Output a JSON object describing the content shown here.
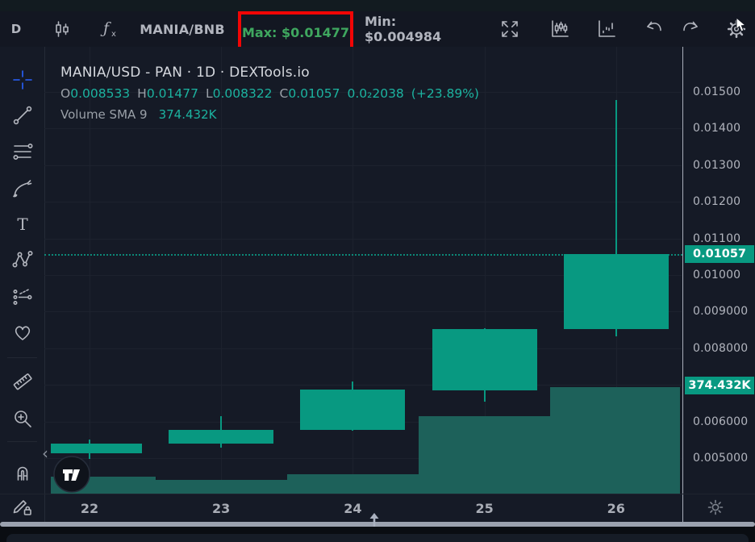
{
  "toolbar": {
    "timeframe_label": "D",
    "ticker": "MANIA/BNB",
    "max_label": "Max: $0.01477",
    "min_label": "Min: $0.004984",
    "icon_names": [
      "candlestick-interval-icon",
      "indicator-fx-icon",
      "expand-fullscreen-icon",
      "candles-style-icon",
      "bars-style-icon",
      "undo-icon",
      "redo-icon",
      "settings-gear-icon"
    ]
  },
  "legend": {
    "title": "MANIA/USD - PAN · 1D · DEXTools.io",
    "ohlc": {
      "o_label": "O",
      "o": "0.008533",
      "h_label": "H",
      "h": "0.01477",
      "l_label": "L",
      "l": "0.008322",
      "c_label": "C",
      "c": "0.01057",
      "change_abs": "0.0₂2038",
      "change_pct": "(+23.89%)"
    },
    "volume_label": "Volume SMA 9",
    "volume_value": "374.432K"
  },
  "sidebar": {
    "tools": [
      {
        "name": "crosshair-tool",
        "icon": "crosshair-icon",
        "active": true
      },
      {
        "name": "trend-line-tool",
        "icon": "trend-line-icon"
      },
      {
        "name": "fib-retracement-tool",
        "icon": "fib-lines-icon"
      },
      {
        "name": "brush-tool",
        "icon": "brush-icon"
      },
      {
        "name": "text-tool",
        "icon": "text-icon"
      },
      {
        "name": "xabcd-pattern-tool",
        "icon": "pattern-icon"
      },
      {
        "name": "projection-tool",
        "icon": "projection-icon"
      },
      {
        "name": "emoji-tool",
        "icon": "heart-icon"
      },
      {
        "name": "measure-tool",
        "icon": "ruler-icon"
      },
      {
        "name": "zoom-in-tool",
        "icon": "magnifier-plus-icon"
      },
      {
        "name": "magnet-tool",
        "icon": "magnet-icon"
      },
      {
        "name": "lock-drawings-tool",
        "icon": "pencil-lock-icon"
      }
    ],
    "collapse_arrow": "‹"
  },
  "price_axis": {
    "ticks": [
      {
        "label": "0.01500",
        "value": 0.015
      },
      {
        "label": "0.01400",
        "value": 0.014
      },
      {
        "label": "0.01300",
        "value": 0.013
      },
      {
        "label": "0.01200",
        "value": 0.012
      },
      {
        "label": "0.01100",
        "value": 0.011
      },
      {
        "label": "0.01000",
        "value": 0.01
      },
      {
        "label": "0.009000",
        "value": 0.009
      },
      {
        "label": "0.008000",
        "value": 0.008
      },
      {
        "label": "0.006000",
        "value": 0.006
      },
      {
        "label": "0.005000",
        "value": 0.005
      }
    ],
    "price_badge": {
      "label": "0.01057",
      "value": 0.01057
    },
    "volume_badge": {
      "label": "374.432K",
      "value": 374432
    }
  },
  "chart_data": {
    "type": "candlestick",
    "title": "MANIA/USD - PAN · 1D · DEXTools.io",
    "pair": "MANIA/USD",
    "exchange": "PAN",
    "interval": "1D",
    "source": "DEXTools.io",
    "ylim": [
      0.00403,
      0.01623
    ],
    "grid": true,
    "x_labels": [
      "22",
      "23",
      "24",
      "25",
      "26"
    ],
    "candles": [
      {
        "date": "22",
        "open": 0.00513,
        "high": 0.00551,
        "low": 0.004984,
        "close": 0.0054,
        "volume": 60000
      },
      {
        "date": "23",
        "open": 0.0054,
        "high": 0.00615,
        "low": 0.00529,
        "close": 0.00577,
        "volume": 48000
      },
      {
        "date": "24",
        "open": 0.00577,
        "high": 0.00709,
        "low": 0.00575,
        "close": 0.00687,
        "volume": 68000
      },
      {
        "date": "25",
        "open": 0.00686,
        "high": 0.00854,
        "low": 0.00654,
        "close": 0.00852,
        "volume": 272000
      },
      {
        "date": "26",
        "open": 0.008533,
        "high": 0.01477,
        "low": 0.008322,
        "close": 0.01057,
        "volume": 374432
      }
    ],
    "current_price": 0.01057,
    "volume_sma_label": "Volume SMA 9",
    "volume_sma_value": "374.432K",
    "max_annotation": "Max: $0.01477",
    "min_annotation": "Min: $0.004984"
  },
  "colors": {
    "up": "#089981",
    "vol": "#1d615a",
    "cyan": "#4bb5e0",
    "green": "#3fa75f",
    "red": "#e2374e",
    "boxred": "#f20505",
    "badge": "#089981",
    "tealtext": "#1cb3a0"
  }
}
